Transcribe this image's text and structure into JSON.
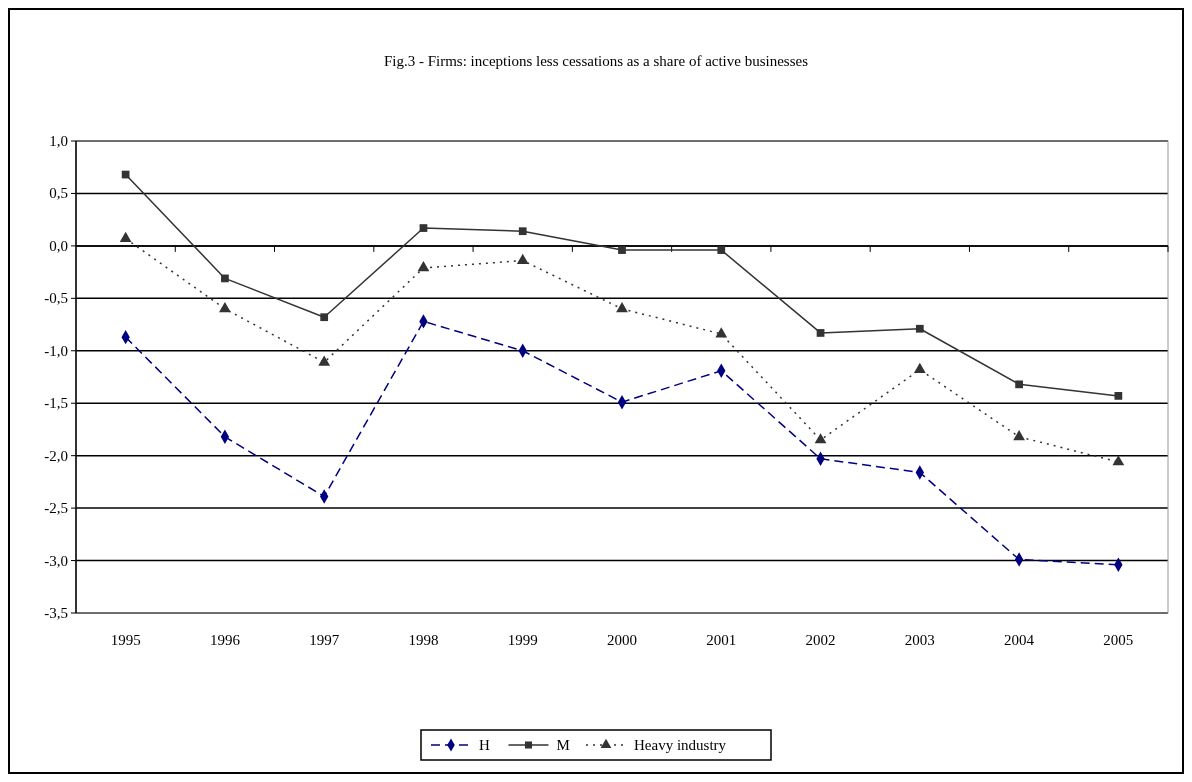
{
  "chart_data": {
    "type": "line",
    "title": "Fig.3 - Firms: inceptions less cessations as a share of active businesses",
    "categories": [
      "1995",
      "1996",
      "1997",
      "1998",
      "1999",
      "2000",
      "2001",
      "2002",
      "2003",
      "2004",
      "2005"
    ],
    "series": [
      {
        "name": "H",
        "color": "#000080",
        "marker": "diamond",
        "line_style": "dashed",
        "values": [
          -0.87,
          -1.82,
          -2.39,
          -0.72,
          -1.0,
          -1.49,
          -1.19,
          -2.03,
          -2.16,
          -2.99,
          -3.04
        ]
      },
      {
        "name": "M",
        "color": "#333333",
        "marker": "square",
        "line_style": "solid",
        "values": [
          0.68,
          -0.31,
          -0.68,
          0.17,
          0.14,
          -0.04,
          -0.04,
          -0.83,
          -0.79,
          -1.32,
          -1.43
        ]
      },
      {
        "name": "Heavy industry",
        "color": "#333333",
        "marker": "triangle",
        "line_style": "dotted",
        "values": [
          0.07,
          -0.6,
          -1.11,
          -0.21,
          -0.14,
          -0.6,
          -0.84,
          -1.85,
          -1.18,
          -1.82,
          -2.06
        ]
      }
    ],
    "ylim": [
      -3.5,
      1.0
    ],
    "yticks": [
      {
        "value": 1.0,
        "label": "1,0"
      },
      {
        "value": 0.5,
        "label": "0,5"
      },
      {
        "value": 0,
        "label": "0,0"
      },
      {
        "value": -0.5,
        "label": "-0,5"
      },
      {
        "value": -1.0,
        "label": "-1,0"
      },
      {
        "value": -1.5,
        "label": "-1,5"
      },
      {
        "value": -2.0,
        "label": "-2,0"
      },
      {
        "value": -2.5,
        "label": "-2,5"
      },
      {
        "value": -3.0,
        "label": "-3,0"
      },
      {
        "value": -3.5,
        "label": "-3,5"
      }
    ],
    "grid": "y",
    "legend": "bottom"
  }
}
